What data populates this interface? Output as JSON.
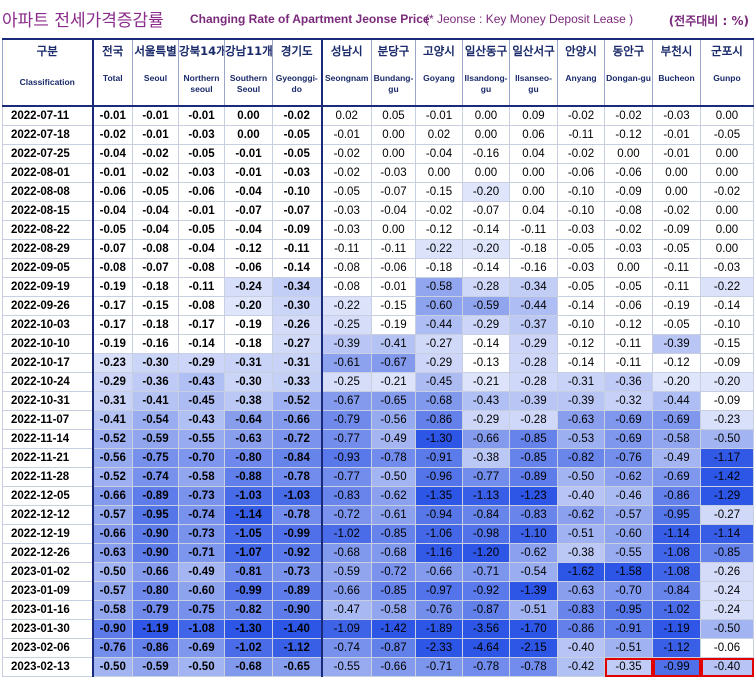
{
  "title": {
    "ko": "아파트 전세가격증감률",
    "en": "Changing Rate of Apartment Jeonse Price",
    "note": "(* Jeonse : Key Money Deposit Lease )",
    "unit": "(전주대비 : %)"
  },
  "columns": [
    {
      "ko": "구분",
      "en": "Classification"
    },
    {
      "ko": "전국",
      "en": "Total"
    },
    {
      "ko": "서울특별",
      "en": "Seoul"
    },
    {
      "ko": "강북14개",
      "en": "Northern seoul"
    },
    {
      "ko": "강남11개",
      "en": "Southern Seoul"
    },
    {
      "ko": "경기도",
      "en": "Gyeonggi-do"
    },
    {
      "ko": "성남시",
      "en": "Seongnam"
    },
    {
      "ko": "분당구",
      "en": "Bundang-gu"
    },
    {
      "ko": "고양시",
      "en": "Goyang"
    },
    {
      "ko": "일산동구",
      "en": "Ilsandong-gu"
    },
    {
      "ko": "일산서구",
      "en": "Ilsanseo-gu"
    },
    {
      "ko": "안양시",
      "en": "Anyang"
    },
    {
      "ko": "동안구",
      "en": "Dongan-gu"
    },
    {
      "ko": "부천시",
      "en": "Bucheon"
    },
    {
      "ko": "군포시",
      "en": "Gunpo"
    }
  ],
  "chart_data": {
    "type": "heatmap",
    "rows": [
      {
        "date": "2022-07-11",
        "values": [
          "-0.01",
          "-0.01",
          "-0.01",
          "0.00",
          "-0.02",
          "0.02",
          "0.05",
          "-0.01",
          "0.00",
          "0.09",
          "-0.02",
          "-0.02",
          "-0.03",
          "0.00"
        ]
      },
      {
        "date": "2022-07-18",
        "values": [
          "-0.02",
          "-0.01",
          "-0.03",
          "0.00",
          "-0.05",
          "-0.01",
          "0.00",
          "0.02",
          "0.00",
          "0.06",
          "-0.11",
          "-0.12",
          "-0.01",
          "-0.05"
        ]
      },
      {
        "date": "2022-07-25",
        "values": [
          "-0.04",
          "-0.02",
          "-0.05",
          "-0.01",
          "-0.05",
          "-0.02",
          "0.00",
          "-0.04",
          "-0.16",
          "0.04",
          "-0.02",
          "0.00",
          "-0.01",
          "0.00"
        ]
      },
      {
        "date": "2022-08-01",
        "values": [
          "-0.01",
          "-0.02",
          "-0.03",
          "-0.01",
          "-0.03",
          "-0.02",
          "-0.03",
          "0.00",
          "0.00",
          "0.00",
          "-0.06",
          "-0.06",
          "0.00",
          "0.00"
        ]
      },
      {
        "date": "2022-08-08",
        "values": [
          "-0.06",
          "-0.05",
          "-0.06",
          "-0.04",
          "-0.10",
          "-0.05",
          "-0.07",
          "-0.15",
          "-0.20",
          "0.00",
          "-0.10",
          "-0.09",
          "0.00",
          "-0.02"
        ]
      },
      {
        "date": "2022-08-15",
        "values": [
          "-0.04",
          "-0.04",
          "-0.01",
          "-0.07",
          "-0.07",
          "-0.03",
          "-0.04",
          "-0.02",
          "-0.07",
          "0.04",
          "-0.10",
          "-0.08",
          "-0.02",
          "0.00"
        ]
      },
      {
        "date": "2022-08-22",
        "values": [
          "-0.05",
          "-0.04",
          "-0.05",
          "-0.04",
          "-0.09",
          "-0.03",
          "0.00",
          "-0.12",
          "-0.14",
          "-0.11",
          "-0.03",
          "-0.02",
          "-0.09",
          "0.00"
        ]
      },
      {
        "date": "2022-08-29",
        "values": [
          "-0.07",
          "-0.08",
          "-0.04",
          "-0.12",
          "-0.11",
          "-0.11",
          "-0.11",
          "-0.22",
          "-0.20",
          "-0.18",
          "-0.05",
          "-0.03",
          "-0.05",
          "0.00"
        ]
      },
      {
        "date": "2022-09-05",
        "values": [
          "-0.08",
          "-0.07",
          "-0.08",
          "-0.06",
          "-0.14",
          "-0.08",
          "-0.06",
          "-0.18",
          "-0.14",
          "-0.16",
          "-0.03",
          "0.00",
          "-0.11",
          "-0.03"
        ]
      },
      {
        "date": "2022-09-19",
        "values": [
          "-0.19",
          "-0.18",
          "-0.11",
          "-0.24",
          "-0.34",
          "-0.08",
          "-0.01",
          "-0.58",
          "-0.28",
          "-0.34",
          "-0.05",
          "-0.05",
          "-0.11",
          "-0.22"
        ]
      },
      {
        "date": "2022-09-26",
        "values": [
          "-0.17",
          "-0.15",
          "-0.08",
          "-0.20",
          "-0.30",
          "-0.22",
          "-0.15",
          "-0.60",
          "-0.59",
          "-0.44",
          "-0.14",
          "-0.06",
          "-0.19",
          "-0.14"
        ]
      },
      {
        "date": "2022-10-03",
        "values": [
          "-0.17",
          "-0.18",
          "-0.17",
          "-0.19",
          "-0.26",
          "-0.25",
          "-0.19",
          "-0.44",
          "-0.29",
          "-0.37",
          "-0.10",
          "-0.12",
          "-0.05",
          "-0.10"
        ]
      },
      {
        "date": "2022-10-10",
        "values": [
          "-0.19",
          "-0.16",
          "-0.14",
          "-0.18",
          "-0.27",
          "-0.39",
          "-0.41",
          "-0.27",
          "-0.14",
          "-0.29",
          "-0.12",
          "-0.11",
          "-0.39",
          "-0.15"
        ]
      },
      {
        "date": "2022-10-17",
        "values": [
          "-0.23",
          "-0.30",
          "-0.29",
          "-0.31",
          "-0.31",
          "-0.61",
          "-0.67",
          "-0.29",
          "-0.13",
          "-0.28",
          "-0.14",
          "-0.11",
          "-0.12",
          "-0.09"
        ]
      },
      {
        "date": "2022-10-24",
        "values": [
          "-0.29",
          "-0.36",
          "-0.43",
          "-0.30",
          "-0.33",
          "-0.25",
          "-0.21",
          "-0.45",
          "-0.21",
          "-0.28",
          "-0.31",
          "-0.36",
          "-0.20",
          "-0.20"
        ]
      },
      {
        "date": "2022-10-31",
        "values": [
          "-0.31",
          "-0.41",
          "-0.45",
          "-0.38",
          "-0.52",
          "-0.67",
          "-0.65",
          "-0.68",
          "-0.43",
          "-0.39",
          "-0.39",
          "-0.32",
          "-0.44",
          "-0.09"
        ]
      },
      {
        "date": "2022-11-07",
        "values": [
          "-0.41",
          "-0.54",
          "-0.43",
          "-0.64",
          "-0.66",
          "-0.79",
          "-0.56",
          "-0.86",
          "-0.29",
          "-0.28",
          "-0.63",
          "-0.69",
          "-0.69",
          "-0.23"
        ]
      },
      {
        "date": "2022-11-14",
        "values": [
          "-0.52",
          "-0.59",
          "-0.55",
          "-0.63",
          "-0.72",
          "-0.77",
          "-0.49",
          "-1.30",
          "-0.66",
          "-0.85",
          "-0.53",
          "-0.69",
          "-0.58",
          "-0.50"
        ]
      },
      {
        "date": "2022-11-21",
        "values": [
          "-0.56",
          "-0.75",
          "-0.70",
          "-0.80",
          "-0.84",
          "-0.93",
          "-0.78",
          "-0.91",
          "-0.38",
          "-0.85",
          "-0.82",
          "-0.76",
          "-0.49",
          "-1.17"
        ]
      },
      {
        "date": "2022-11-28",
        "values": [
          "-0.52",
          "-0.74",
          "-0.58",
          "-0.88",
          "-0.78",
          "-0.77",
          "-0.50",
          "-0.96",
          "-0.77",
          "-0.89",
          "-0.50",
          "-0.62",
          "-0.69",
          "-1.42"
        ]
      },
      {
        "date": "2022-12-05",
        "values": [
          "-0.66",
          "-0.89",
          "-0.73",
          "-1.03",
          "-1.03",
          "-0.83",
          "-0.62",
          "-1.35",
          "-1.13",
          "-1.23",
          "-0.40",
          "-0.46",
          "-0.86",
          "-1.29"
        ]
      },
      {
        "date": "2022-12-12",
        "values": [
          "-0.57",
          "-0.95",
          "-0.74",
          "-1.14",
          "-0.78",
          "-0.72",
          "-0.61",
          "-0.94",
          "-0.84",
          "-0.83",
          "-0.62",
          "-0.57",
          "-0.95",
          "-0.27"
        ]
      },
      {
        "date": "2022-12-19",
        "values": [
          "-0.66",
          "-0.90",
          "-0.73",
          "-1.05",
          "-0.99",
          "-1.02",
          "-0.85",
          "-1.06",
          "-0.98",
          "-1.10",
          "-0.51",
          "-0.60",
          "-1.14",
          "-1.14"
        ]
      },
      {
        "date": "2022-12-26",
        "values": [
          "-0.63",
          "-0.90",
          "-0.71",
          "-1.07",
          "-0.92",
          "-0.68",
          "-0.68",
          "-1.16",
          "-1.20",
          "-0.62",
          "-0.38",
          "-0.55",
          "-1.08",
          "-0.85"
        ]
      },
      {
        "date": "2023-01-02",
        "values": [
          "-0.50",
          "-0.66",
          "-0.49",
          "-0.81",
          "-0.73",
          "-0.59",
          "-0.72",
          "-0.66",
          "-0.71",
          "-0.54",
          "-1.62",
          "-1.58",
          "-1.08",
          "-0.26"
        ]
      },
      {
        "date": "2023-01-09",
        "values": [
          "-0.57",
          "-0.80",
          "-0.60",
          "-0.99",
          "-0.89",
          "-0.66",
          "-0.85",
          "-0.97",
          "-0.92",
          "-1.39",
          "-0.63",
          "-0.70",
          "-0.84",
          "-0.24"
        ]
      },
      {
        "date": "2023-01-16",
        "values": [
          "-0.58",
          "-0.79",
          "-0.75",
          "-0.82",
          "-0.90",
          "-0.47",
          "-0.58",
          "-0.76",
          "-0.87",
          "-0.51",
          "-0.83",
          "-0.95",
          "-1.02",
          "-0.24"
        ]
      },
      {
        "date": "2023-01-30",
        "values": [
          "-0.90",
          "-1.19",
          "-1.08",
          "-1.30",
          "-1.40",
          "-1.09",
          "-1.42",
          "-1.89",
          "-3.56",
          "-1.70",
          "-0.86",
          "-0.91",
          "-1.19",
          "-0.50"
        ]
      },
      {
        "date": "2023-02-06",
        "values": [
          "-0.76",
          "-0.86",
          "-0.69",
          "-1.02",
          "-1.12",
          "-0.74",
          "-0.87",
          "-2.33",
          "-4.64",
          "-2.15",
          "-0.40",
          "-0.51",
          "-1.12",
          "-0.06"
        ]
      },
      {
        "date": "2023-02-13",
        "values": [
          "-0.50",
          "-0.59",
          "-0.50",
          "-0.68",
          "-0.65",
          "-0.55",
          "-0.66",
          "-0.71",
          "-0.78",
          "-0.78",
          "-0.42",
          "-0.35",
          "-0.99",
          "-0.40"
        ]
      }
    ],
    "highlighted_cells": [
      {
        "date": "2023-02-13",
        "column": "동안구"
      },
      {
        "date": "2023-02-13",
        "column": "부천시"
      },
      {
        "date": "2023-02-13",
        "column": "군포시"
      }
    ],
    "bold_columns": [
      "전국",
      "서울특별",
      "강북14개",
      "강남11개",
      "경기도"
    ],
    "colors": {
      "light": "#dfe5fb",
      "mid": "#8ea3ee",
      "dark": "#2d55e6",
      "highlight": "#e00000"
    }
  }
}
